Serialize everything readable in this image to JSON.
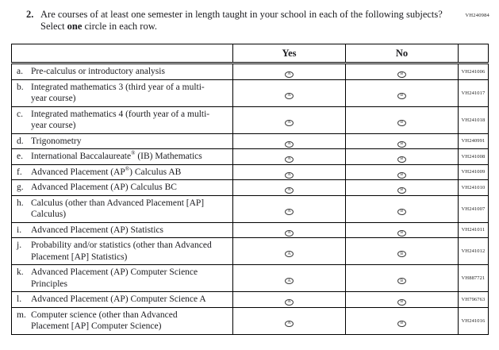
{
  "page": {
    "form_code": "VH240984"
  },
  "question": {
    "number": "2.",
    "text_before_bold": "Are courses of at least one semester in length taught in your school in each of the following subjects? Select ",
    "bold_word": "one",
    "text_after_bold": " circle in each row."
  },
  "table": {
    "headers": {
      "yes": "Yes",
      "no": "No"
    },
    "options": {
      "yes_letter": "A",
      "no_letter": "B"
    },
    "rows": [
      {
        "letter": "a.",
        "pre": "Pre-calculus or introductory analysis",
        "sup": "",
        "post": "",
        "code": "VH241006"
      },
      {
        "letter": "b.",
        "pre": "Integrated mathematics 3 (third year of a multi-year course)",
        "sup": "",
        "post": "",
        "code": "VH241017"
      },
      {
        "letter": "c.",
        "pre": "Integrated mathematics 4 (fourth year of a multi-year course)",
        "sup": "",
        "post": "",
        "code": "VH241018"
      },
      {
        "letter": "d.",
        "pre": "Trigonometry",
        "sup": "",
        "post": "",
        "code": "VH240991"
      },
      {
        "letter": "e.",
        "pre": "International Baccalaureate",
        "sup": "®",
        "post": " (IB) Mathematics",
        "code": "VH241008"
      },
      {
        "letter": "f.",
        "pre": "Advanced Placement (AP",
        "sup": "®",
        "post": ") Calculus AB",
        "code": "VH241009"
      },
      {
        "letter": "g.",
        "pre": "Advanced Placement (AP) Calculus BC",
        "sup": "",
        "post": "",
        "code": "VH241010"
      },
      {
        "letter": "h.",
        "pre": "Calculus (other than Advanced Placement [AP] Calculus)",
        "sup": "",
        "post": "",
        "code": "VH241007"
      },
      {
        "letter": "i.",
        "pre": "Advanced Placement (AP) Statistics",
        "sup": "",
        "post": "",
        "code": "VH241011"
      },
      {
        "letter": "j.",
        "pre": "Probability and/or statistics (other than Advanced Placement [AP] Statistics)",
        "sup": "",
        "post": "",
        "code": "VH241012"
      },
      {
        "letter": "k.",
        "pre": "Advanced Placement (AP) Computer Science Principles",
        "sup": "",
        "post": "",
        "code": "VH887721"
      },
      {
        "letter": "l.",
        "pre": "Advanced Placement (AP) Computer Science A",
        "sup": "",
        "post": "",
        "code": "VH796763"
      },
      {
        "letter": "m.",
        "pre": "Computer science (other than Advanced Placement [AP] Computer Science)",
        "sup": "",
        "post": "",
        "code": "VH241016"
      }
    ]
  }
}
